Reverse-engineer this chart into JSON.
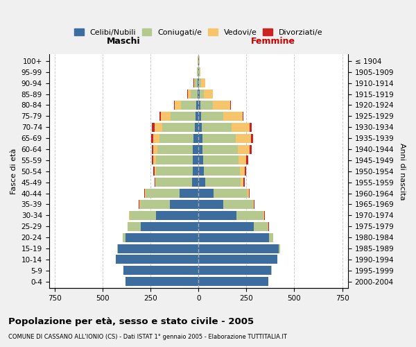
{
  "age_groups": [
    "0-4",
    "5-9",
    "10-14",
    "15-19",
    "20-24",
    "25-29",
    "30-34",
    "35-39",
    "40-44",
    "45-49",
    "50-54",
    "55-59",
    "60-64",
    "65-69",
    "70-74",
    "75-79",
    "80-84",
    "85-89",
    "90-94",
    "95-99",
    "100+"
  ],
  "birth_years": [
    "2000-2004",
    "1995-1999",
    "1990-1994",
    "1985-1989",
    "1980-1984",
    "1975-1979",
    "1970-1974",
    "1965-1969",
    "1960-1964",
    "1955-1959",
    "1950-1954",
    "1945-1949",
    "1940-1944",
    "1935-1939",
    "1930-1934",
    "1925-1929",
    "1920-1924",
    "1915-1919",
    "1910-1914",
    "1905-1909",
    "≤ 1904"
  ],
  "colors": {
    "celibi": "#3d6d9e",
    "coniugati": "#b5c98e",
    "vedovi": "#f5c46b",
    "divorziati": "#cc2222"
  },
  "males": {
    "celibi": [
      380,
      390,
      430,
      420,
      380,
      300,
      220,
      150,
      100,
      35,
      30,
      30,
      30,
      25,
      20,
      15,
      10,
      5,
      4,
      2,
      2
    ],
    "coniugati": [
      0,
      1,
      2,
      5,
      15,
      70,
      140,
      155,
      175,
      185,
      190,
      190,
      185,
      180,
      170,
      130,
      80,
      35,
      15,
      5,
      3
    ],
    "vedovi": [
      0,
      0,
      0,
      0,
      0,
      0,
      1,
      2,
      3,
      5,
      10,
      15,
      20,
      30,
      40,
      50,
      35,
      15,
      5,
      2,
      0
    ],
    "divorziati": [
      0,
      0,
      0,
      0,
      0,
      1,
      2,
      3,
      4,
      5,
      6,
      7,
      8,
      10,
      12,
      8,
      4,
      2,
      1,
      0,
      0
    ]
  },
  "females": {
    "celibi": [
      365,
      380,
      410,
      420,
      370,
      290,
      200,
      130,
      80,
      35,
      28,
      25,
      22,
      20,
      18,
      15,
      10,
      5,
      3,
      2,
      2
    ],
    "coniugati": [
      0,
      1,
      2,
      5,
      20,
      75,
      140,
      155,
      175,
      185,
      190,
      185,
      185,
      175,
      155,
      115,
      65,
      25,
      12,
      4,
      2
    ],
    "vedovi": [
      0,
      0,
      0,
      0,
      0,
      1,
      2,
      4,
      8,
      15,
      25,
      40,
      60,
      80,
      95,
      100,
      90,
      45,
      20,
      5,
      2
    ],
    "divorziati": [
      0,
      0,
      0,
      0,
      1,
      2,
      3,
      4,
      5,
      6,
      7,
      8,
      9,
      10,
      8,
      5,
      3,
      2,
      1,
      0,
      0
    ]
  },
  "xlim": 780,
  "title": "Popolazione per età, sesso e stato civile - 2005",
  "subtitle": "COMUNE DI CASSANO ALL'IONIO (CS) - Dati ISTAT 1° gennaio 2005 - Elaborazione TUTTITALIA.IT",
  "legend_labels": [
    "Celibi/Nubili",
    "Coniugati/e",
    "Vedovi/e",
    "Divorziati/e"
  ],
  "ylabel_left": "Fasce di età",
  "ylabel_right": "Anni di nascita",
  "xlabel_maschi": "Maschi",
  "xlabel_femmine": "Femmine",
  "bg_color": "#f0f0f0",
  "plot_bg": "#ffffff"
}
